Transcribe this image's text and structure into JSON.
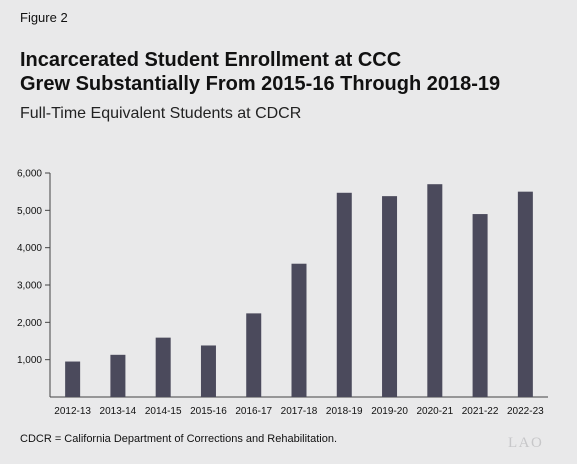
{
  "figure_label": "Figure 2",
  "title_lines": [
    "Incarcerated Student Enrollment at CCC",
    "Grew Substantially From 2015-16 Through 2018-19"
  ],
  "subtitle": "Full-Time Equivalent Students at CDCR",
  "footnote": "CDCR = California Department of Corrections and Rehabilitation.",
  "logo_text": "LAO",
  "chart_data": {
    "type": "bar",
    "title": "Incarcerated Student Enrollment at CCC Grew Substantially From 2015-16 Through 2018-19",
    "subtitle": "Full-Time Equivalent Students at CDCR",
    "xlabel": "",
    "ylabel": "",
    "categories": [
      "2012-13",
      "2013-14",
      "2014-15",
      "2015-16",
      "2016-17",
      "2017-18",
      "2018-19",
      "2019-20",
      "2020-21",
      "2021-22",
      "2022-23"
    ],
    "values": [
      950,
      1130,
      1590,
      1380,
      2240,
      3570,
      5470,
      5380,
      5700,
      4900,
      5500
    ],
    "ylim": [
      0,
      6000
    ],
    "yticks": [
      1000,
      2000,
      3000,
      4000,
      5000,
      6000
    ],
    "ytick_labels": [
      "1,000",
      "2,000",
      "3,000",
      "4,000",
      "5,000",
      "6,000"
    ],
    "grid": false,
    "legend": "none",
    "bar_color": "#4b4a5c"
  }
}
